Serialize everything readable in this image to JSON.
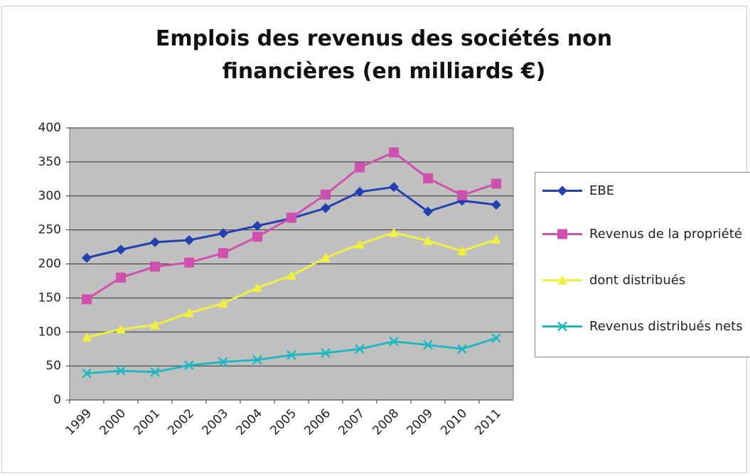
{
  "chart_data": {
    "type": "line",
    "title": "Emplois des revenus des sociétés non financières (en milliards €)",
    "categories": [
      "1999",
      "2000",
      "2001",
      "2002",
      "2003",
      "2004",
      "2005",
      "2006",
      "2007",
      "2008",
      "2009",
      "2010",
      "2011"
    ],
    "series": [
      {
        "name": "EBE",
        "color": "#2340b0",
        "marker": "diamond",
        "values": [
          209,
          221,
          232,
          235,
          245,
          256,
          267,
          282,
          306,
          313,
          277,
          293,
          287
        ]
      },
      {
        "name": "Revenus de la propriété",
        "color": "#d050b0",
        "marker": "square",
        "values": [
          148,
          180,
          196,
          202,
          216,
          240,
          268,
          302,
          342,
          364,
          326,
          301,
          318
        ]
      },
      {
        "name": "dont distribués",
        "color": "#f0f040",
        "marker": "triangle",
        "values": [
          92,
          104,
          110,
          128,
          142,
          165,
          183,
          209,
          229,
          246,
          234,
          219,
          236
        ]
      },
      {
        "name": "Revenus distribués nets",
        "color": "#20b8c0",
        "marker": "x",
        "values": [
          39,
          43,
          41,
          51,
          56,
          59,
          66,
          69,
          75,
          86,
          81,
          75,
          91
        ]
      }
    ],
    "ylim": [
      0,
      400
    ],
    "yticks": [
      0,
      50,
      100,
      150,
      200,
      250,
      300,
      350,
      400
    ],
    "grid": true,
    "legend": "right"
  }
}
